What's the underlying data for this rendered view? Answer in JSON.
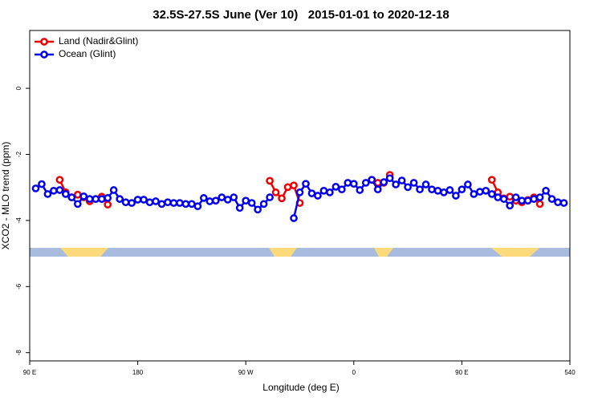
{
  "chart_data": {
    "type": "line",
    "title": "32.5S-27.5S June (Ver 10)   2015-01-01 to 2020-12-18",
    "x_label": "Longitude (deg E)",
    "y_label": "XCO2 - MLO trend (ppm)",
    "xlim": [
      90,
      540
    ],
    "xticks": [
      {
        "value": 90,
        "label": "90 E"
      },
      180,
      {
        "value": 270,
        "label": "90 W"
      },
      {
        "value": 360,
        "label": "0"
      },
      {
        "value": 450,
        "label": "90 E"
      },
      540
    ],
    "ylim": [
      -8.25,
      1.75
    ],
    "yticks": [
      0,
      -2,
      -4,
      -6,
      -8
    ],
    "legend": "top-left",
    "x": [
      95,
      100,
      105,
      110,
      115,
      120,
      125,
      130,
      135,
      140,
      145,
      150,
      155,
      160,
      165,
      170,
      175,
      180,
      185,
      190,
      195,
      200,
      205,
      210,
      215,
      220,
      225,
      230,
      235,
      240,
      245,
      250,
      255,
      260,
      265,
      270,
      275,
      280,
      285,
      290,
      295,
      300,
      305,
      310,
      315,
      320,
      325,
      330,
      335,
      340,
      345,
      350,
      355,
      360,
      365,
      370,
      375,
      380,
      385,
      390,
      395,
      400,
      405,
      410,
      415,
      420,
      425,
      430,
      435,
      440,
      445,
      450,
      455,
      460,
      465,
      470,
      475,
      480,
      485,
      490,
      495,
      500,
      505,
      510,
      515,
      520,
      525,
      530,
      535
    ],
    "series": [
      {
        "name": "Land (Nadir&Glint)",
        "color": "#ee0000",
        "values": [
          null,
          null,
          null,
          null,
          -2.77,
          -3.15,
          -3.3,
          -3.22,
          -3.3,
          -3.42,
          -3.35,
          -3.28,
          -3.52,
          null,
          null,
          null,
          null,
          null,
          null,
          null,
          null,
          null,
          null,
          null,
          null,
          null,
          null,
          null,
          null,
          null,
          null,
          null,
          null,
          null,
          null,
          null,
          null,
          null,
          null,
          -2.8,
          -3.15,
          -3.33,
          -2.99,
          -2.94,
          -3.47,
          null,
          null,
          null,
          null,
          null,
          null,
          null,
          null,
          null,
          null,
          null,
          -2.77,
          -2.86,
          -2.86,
          -2.62,
          null,
          null,
          null,
          null,
          null,
          null,
          null,
          null,
          null,
          null,
          null,
          null,
          null,
          null,
          null,
          null,
          -2.77,
          -3.15,
          -3.33,
          -3.28,
          -3.4,
          -3.45,
          -3.38,
          -3.3,
          -3.5,
          null,
          null,
          null,
          null
        ]
      },
      {
        "name": "Ocean (Glint)",
        "color": "#0000ee",
        "values": [
          -3.03,
          -2.9,
          -3.2,
          -3.1,
          -3.08,
          -3.2,
          -3.3,
          -3.5,
          -3.27,
          -3.35,
          -3.35,
          -3.35,
          -3.32,
          -3.08,
          -3.35,
          -3.45,
          -3.47,
          -3.37,
          -3.37,
          -3.45,
          -3.42,
          -3.5,
          -3.45,
          -3.47,
          -3.47,
          -3.5,
          -3.5,
          -3.57,
          -3.32,
          -3.42,
          -3.4,
          -3.3,
          -3.37,
          -3.3,
          -3.62,
          -3.4,
          -3.47,
          -3.67,
          -3.5,
          -3.3,
          null,
          null,
          null,
          -3.93,
          -3.15,
          -2.89,
          -3.18,
          -3.25,
          -3.1,
          -3.15,
          -2.98,
          -3.06,
          -2.86,
          -2.89,
          -3.08,
          -2.86,
          -2.77,
          -3.06,
          -2.84,
          -2.72,
          -2.91,
          -2.79,
          -2.99,
          -2.86,
          -3.06,
          -2.91,
          -3.06,
          -3.1,
          -3.15,
          -3.08,
          -3.25,
          -3.06,
          -2.91,
          -3.2,
          -3.13,
          -3.1,
          -3.2,
          -3.3,
          -3.35,
          -3.55,
          -3.3,
          -3.4,
          -3.4,
          -3.35,
          -3.3,
          -3.1,
          -3.35,
          -3.45,
          -3.47
        ]
      }
    ]
  }
}
